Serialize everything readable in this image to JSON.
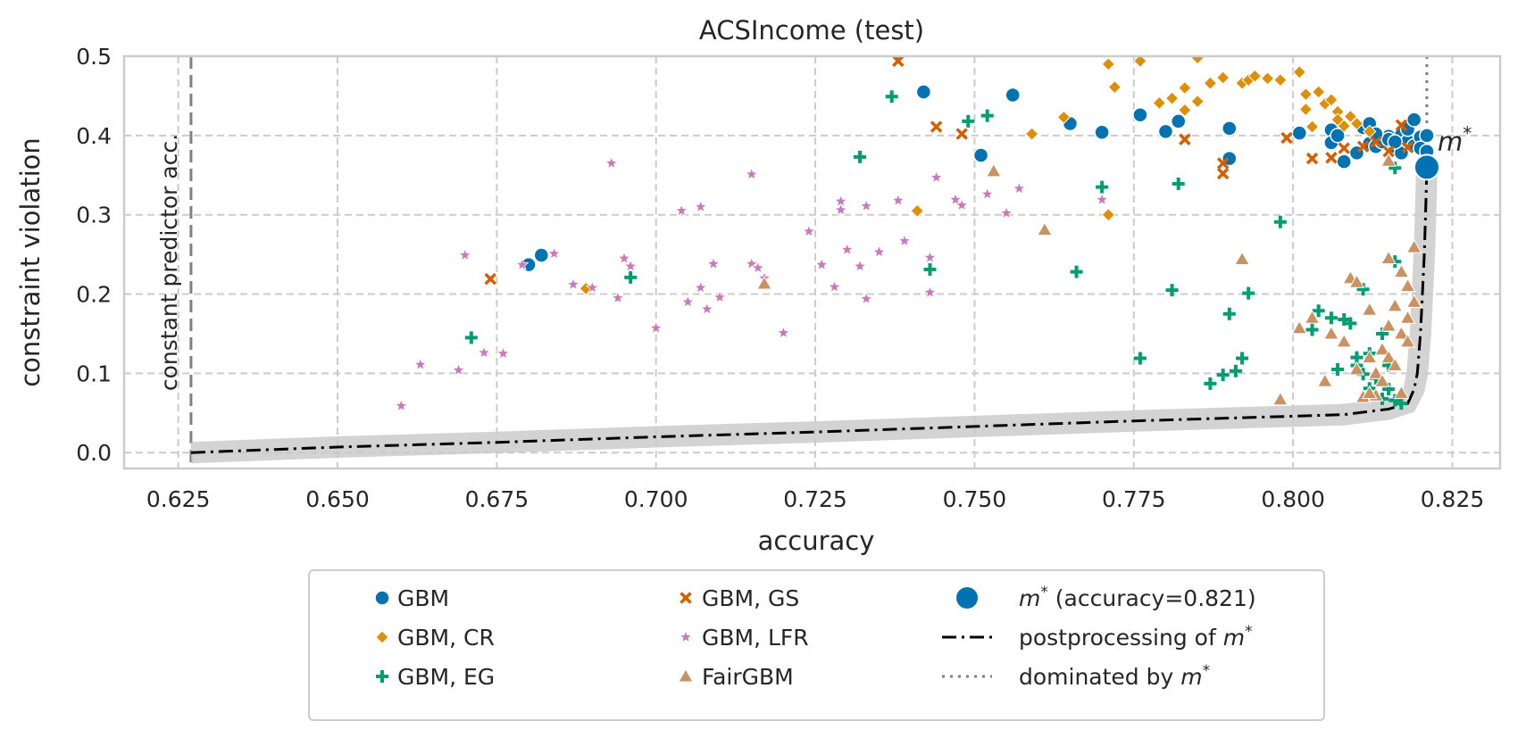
{
  "chart_data": {
    "type": "scatter",
    "title": "ACSIncome (test)",
    "xlabel": "accuracy",
    "ylabel": "constraint violation",
    "xlim": [
      0.6165,
      0.8325
    ],
    "ylim": [
      -0.02,
      0.5
    ],
    "xticks": [
      "0.625",
      "0.650",
      "0.675",
      "0.700",
      "0.725",
      "0.750",
      "0.775",
      "0.800",
      "0.825"
    ],
    "yticks": [
      "0.0",
      "0.1",
      "0.2",
      "0.3",
      "0.4",
      "0.5"
    ],
    "grid": true,
    "legend_position": "below, outside plot area",
    "vline_label": "constant predictor acc.",
    "constant_predictor_accuracy": 0.627,
    "mstar_label": "m",
    "mstar_sup": "*",
    "mstar": {
      "x": 0.821,
      "y": 0.36
    },
    "colors": {
      "GBM": "#0173b2",
      "GBM_CR": "#de8f05",
      "GBM_EG": "#029e73",
      "GBM_GS": "#d55e00",
      "GBM_LFR": "#cc78bc",
      "FairGBM": "#ca9161",
      "post": "#000000",
      "band": "#c8c8c8",
      "dominated": "#7f7f7f",
      "vline": "#808080"
    },
    "legend": [
      {
        "key": "GBM",
        "label": "GBM",
        "marker": "circle",
        "color": "#0173b2"
      },
      {
        "key": "GBM_CR",
        "label": "GBM, CR",
        "marker": "diamond",
        "color": "#de8f05"
      },
      {
        "key": "GBM_EG",
        "label": "GBM, EG",
        "marker": "plus",
        "color": "#029e73"
      },
      {
        "key": "GBM_GS",
        "label": "GBM, GS",
        "marker": "x",
        "color": "#d55e00"
      },
      {
        "key": "GBM_LFR",
        "label": "GBM, LFR",
        "marker": "star",
        "color": "#cc78bc"
      },
      {
        "key": "FairGBM",
        "label": "FairGBM",
        "marker": "triangle",
        "color": "#ca9161"
      },
      {
        "key": "mstar",
        "label_pre": "m",
        "label_sup": "*",
        "label_post": " (accuracy=0.821)",
        "marker": "bigcircle",
        "color": "#0173b2"
      },
      {
        "key": "post",
        "label_pre": "postprocessing of ",
        "label_m": "m",
        "label_sup": "*",
        "marker": "dashdot",
        "color": "#000000"
      },
      {
        "key": "dominated",
        "label_pre": "dominated by ",
        "label_m": "m",
        "label_sup": "*",
        "marker": "dotted",
        "color": "#7f7f7f"
      }
    ],
    "postprocessing": [
      [
        0.627,
        0.0
      ],
      [
        0.65,
        0.007
      ],
      [
        0.675,
        0.013
      ],
      [
        0.7,
        0.02
      ],
      [
        0.725,
        0.026
      ],
      [
        0.75,
        0.033
      ],
      [
        0.775,
        0.04
      ],
      [
        0.8,
        0.046
      ],
      [
        0.808,
        0.048
      ],
      [
        0.815,
        0.055
      ],
      [
        0.818,
        0.062
      ],
      [
        0.819,
        0.08
      ],
      [
        0.8195,
        0.1
      ],
      [
        0.82,
        0.15
      ],
      [
        0.8203,
        0.2
      ],
      [
        0.8206,
        0.25
      ],
      [
        0.8208,
        0.3
      ],
      [
        0.821,
        0.36
      ]
    ],
    "series": [
      {
        "key": "GBM",
        "name": "GBM",
        "points": [
          [
            0.68,
            0.237
          ],
          [
            0.682,
            0.249
          ],
          [
            0.742,
            0.455
          ],
          [
            0.751,
            0.375
          ],
          [
            0.756,
            0.451
          ],
          [
            0.765,
            0.415
          ],
          [
            0.77,
            0.404
          ],
          [
            0.776,
            0.426
          ],
          [
            0.78,
            0.405
          ],
          [
            0.782,
            0.418
          ],
          [
            0.79,
            0.409
          ],
          [
            0.79,
            0.371
          ],
          [
            0.801,
            0.403
          ],
          [
            0.806,
            0.407
          ],
          [
            0.806,
            0.391
          ],
          [
            0.807,
            0.4
          ],
          [
            0.808,
            0.367
          ],
          [
            0.81,
            0.378
          ],
          [
            0.811,
            0.41
          ],
          [
            0.812,
            0.415
          ],
          [
            0.812,
            0.39
          ],
          [
            0.813,
            0.386
          ],
          [
            0.814,
            0.392
          ],
          [
            0.815,
            0.399
          ],
          [
            0.816,
            0.386
          ],
          [
            0.817,
            0.401
          ],
          [
            0.817,
            0.378
          ],
          [
            0.818,
            0.393
          ],
          [
            0.818,
            0.408
          ],
          [
            0.819,
            0.42
          ],
          [
            0.819,
            0.387
          ],
          [
            0.82,
            0.398
          ],
          [
            0.82,
            0.384
          ],
          [
            0.821,
            0.4
          ],
          [
            0.821,
            0.38
          ],
          [
            0.815,
            0.395
          ],
          [
            0.813,
            0.402
          ],
          [
            0.816,
            0.392
          ]
        ]
      },
      {
        "key": "GBM_CR",
        "name": "GBM, CR",
        "points": [
          [
            0.689,
            0.207
          ],
          [
            0.738,
            0.5
          ],
          [
            0.741,
            0.305
          ],
          [
            0.759,
            0.402
          ],
          [
            0.764,
            0.423
          ],
          [
            0.771,
            0.3
          ],
          [
            0.771,
            0.49
          ],
          [
            0.772,
            0.461
          ],
          [
            0.776,
            0.494
          ],
          [
            0.779,
            0.441
          ],
          [
            0.781,
            0.447
          ],
          [
            0.783,
            0.432
          ],
          [
            0.783,
            0.46
          ],
          [
            0.785,
            0.498
          ],
          [
            0.785,
            0.443
          ],
          [
            0.787,
            0.466
          ],
          [
            0.789,
            0.473
          ],
          [
            0.792,
            0.466
          ],
          [
            0.793,
            0.47
          ],
          [
            0.794,
            0.475
          ],
          [
            0.796,
            0.472
          ],
          [
            0.798,
            0.47
          ],
          [
            0.801,
            0.48
          ],
          [
            0.802,
            0.452
          ],
          [
            0.802,
            0.433
          ],
          [
            0.803,
            0.411
          ],
          [
            0.804,
            0.455
          ],
          [
            0.805,
            0.44
          ],
          [
            0.806,
            0.445
          ],
          [
            0.807,
            0.43
          ],
          [
            0.807,
            0.42
          ],
          [
            0.808,
            0.412
          ],
          [
            0.809,
            0.424
          ],
          [
            0.81,
            0.415
          ],
          [
            0.812,
            0.405
          ]
        ]
      },
      {
        "key": "GBM_EG",
        "name": "GBM, EG",
        "points": [
          [
            0.671,
            0.145
          ],
          [
            0.696,
            0.221
          ],
          [
            0.732,
            0.373
          ],
          [
            0.737,
            0.449
          ],
          [
            0.743,
            0.231
          ],
          [
            0.749,
            0.418
          ],
          [
            0.752,
            0.425
          ],
          [
            0.766,
            0.228
          ],
          [
            0.77,
            0.335
          ],
          [
            0.776,
            0.119
          ],
          [
            0.781,
            0.205
          ],
          [
            0.782,
            0.339
          ],
          [
            0.787,
            0.087
          ],
          [
            0.789,
            0.098
          ],
          [
            0.79,
            0.175
          ],
          [
            0.791,
            0.103
          ],
          [
            0.792,
            0.119
          ],
          [
            0.793,
            0.201
          ],
          [
            0.798,
            0.291
          ],
          [
            0.803,
            0.155
          ],
          [
            0.804,
            0.179
          ],
          [
            0.806,
            0.17
          ],
          [
            0.807,
            0.105
          ],
          [
            0.808,
            0.168
          ],
          [
            0.809,
            0.163
          ],
          [
            0.81,
            0.12
          ],
          [
            0.81,
            0.11
          ],
          [
            0.811,
            0.206
          ],
          [
            0.811,
            0.099
          ],
          [
            0.812,
            0.125
          ],
          [
            0.813,
            0.094
          ],
          [
            0.814,
            0.15
          ],
          [
            0.815,
            0.08
          ],
          [
            0.815,
            0.11
          ],
          [
            0.816,
            0.241
          ],
          [
            0.816,
            0.066
          ],
          [
            0.817,
            0.062
          ],
          [
            0.816,
            0.359
          ],
          [
            0.814,
            0.068
          ],
          [
            0.812,
            0.081
          ]
        ]
      },
      {
        "key": "GBM_GS",
        "name": "GBM, GS",
        "points": [
          [
            0.674,
            0.219
          ],
          [
            0.738,
            0.494
          ],
          [
            0.744,
            0.411
          ],
          [
            0.748,
            0.402
          ],
          [
            0.783,
            0.395
          ],
          [
            0.789,
            0.352
          ],
          [
            0.789,
            0.365
          ],
          [
            0.799,
            0.397
          ],
          [
            0.803,
            0.371
          ],
          [
            0.806,
            0.372
          ],
          [
            0.808,
            0.384
          ],
          [
            0.811,
            0.386
          ],
          [
            0.813,
            0.392
          ],
          [
            0.815,
            0.38
          ],
          [
            0.817,
            0.413
          ],
          [
            0.818,
            0.385
          ]
        ]
      },
      {
        "key": "GBM_LFR",
        "name": "GBM, LFR",
        "points": [
          [
            0.66,
            0.059
          ],
          [
            0.663,
            0.111
          ],
          [
            0.669,
            0.104
          ],
          [
            0.67,
            0.249
          ],
          [
            0.673,
            0.126
          ],
          [
            0.676,
            0.125
          ],
          [
            0.679,
            0.237
          ],
          [
            0.684,
            0.251
          ],
          [
            0.687,
            0.212
          ],
          [
            0.69,
            0.208
          ],
          [
            0.693,
            0.365
          ],
          [
            0.694,
            0.195
          ],
          [
            0.695,
            0.245
          ],
          [
            0.696,
            0.235
          ],
          [
            0.7,
            0.157
          ],
          [
            0.704,
            0.305
          ],
          [
            0.705,
            0.19
          ],
          [
            0.707,
            0.31
          ],
          [
            0.707,
            0.208
          ],
          [
            0.708,
            0.181
          ],
          [
            0.709,
            0.238
          ],
          [
            0.71,
            0.196
          ],
          [
            0.715,
            0.238
          ],
          [
            0.715,
            0.351
          ],
          [
            0.716,
            0.233
          ],
          [
            0.717,
            0.22
          ],
          [
            0.72,
            0.151
          ],
          [
            0.724,
            0.279
          ],
          [
            0.726,
            0.237
          ],
          [
            0.728,
            0.209
          ],
          [
            0.729,
            0.306
          ],
          [
            0.729,
            0.317
          ],
          [
            0.73,
            0.256
          ],
          [
            0.732,
            0.235
          ],
          [
            0.733,
            0.311
          ],
          [
            0.733,
            0.194
          ],
          [
            0.735,
            0.253
          ],
          [
            0.738,
            0.318
          ],
          [
            0.739,
            0.267
          ],
          [
            0.743,
            0.246
          ],
          [
            0.743,
            0.202
          ],
          [
            0.744,
            0.347
          ],
          [
            0.747,
            0.319
          ],
          [
            0.748,
            0.312
          ],
          [
            0.752,
            0.326
          ],
          [
            0.755,
            0.302
          ],
          [
            0.757,
            0.333
          ],
          [
            0.77,
            0.319
          ]
        ]
      },
      {
        "key": "FairGBM",
        "name": "FairGBM",
        "points": [
          [
            0.717,
            0.213
          ],
          [
            0.753,
            0.355
          ],
          [
            0.761,
            0.281
          ],
          [
            0.792,
            0.244
          ],
          [
            0.798,
            0.067
          ],
          [
            0.801,
            0.157
          ],
          [
            0.803,
            0.17
          ],
          [
            0.805,
            0.09
          ],
          [
            0.806,
            0.15
          ],
          [
            0.808,
            0.14
          ],
          [
            0.809,
            0.22
          ],
          [
            0.81,
            0.215
          ],
          [
            0.811,
            0.07
          ],
          [
            0.812,
            0.18
          ],
          [
            0.812,
            0.12
          ],
          [
            0.813,
            0.1
          ],
          [
            0.813,
            0.072
          ],
          [
            0.814,
            0.13
          ],
          [
            0.814,
            0.09
          ],
          [
            0.815,
            0.245
          ],
          [
            0.815,
            0.16
          ],
          [
            0.815,
            0.12
          ],
          [
            0.816,
            0.11
          ],
          [
            0.816,
            0.185
          ],
          [
            0.817,
            0.15
          ],
          [
            0.817,
            0.228
          ],
          [
            0.817,
            0.075
          ],
          [
            0.818,
            0.21
          ],
          [
            0.818,
            0.17
          ],
          [
            0.818,
            0.14
          ],
          [
            0.819,
            0.259
          ],
          [
            0.819,
            0.19
          ],
          [
            0.815,
            0.368
          ],
          [
            0.812,
            0.075
          ],
          [
            0.81,
            0.105
          ]
        ]
      }
    ]
  }
}
